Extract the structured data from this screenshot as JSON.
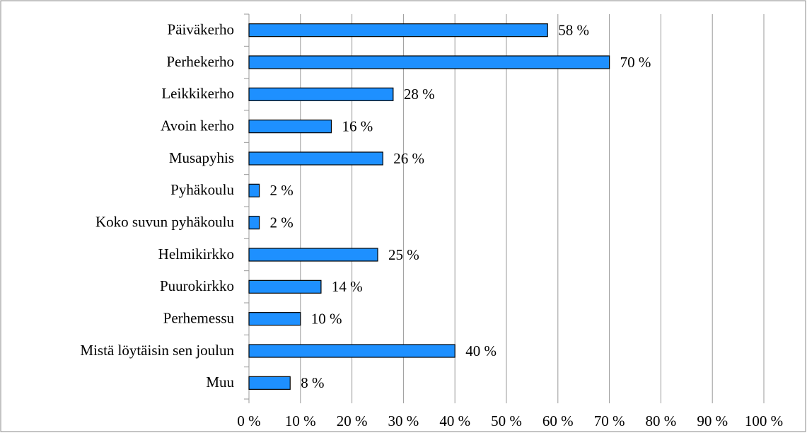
{
  "chart_data": {
    "type": "barh",
    "categories": [
      "Päiväkerho",
      "Perhekerho",
      "Leikkikerho",
      "Avoin kerho",
      "Musapyhis",
      "Pyhäkoulu",
      "Koko suvun pyhäkoulu",
      "Helmikirkko",
      "Puurokirkko",
      "Perhemessu",
      "Mistä löytäisin sen joulun",
      "Muu"
    ],
    "values": [
      58,
      70,
      28,
      16,
      26,
      2,
      2,
      25,
      14,
      10,
      40,
      8
    ],
    "value_labels": [
      "58 %",
      "70 %",
      "28 %",
      "16 %",
      "26 %",
      "2 %",
      "2 %",
      "25 %",
      "14 %",
      "10 %",
      "40 %",
      "8 %"
    ],
    "color": "#1e90ff",
    "xlim": [
      0,
      100
    ],
    "xticks": [
      {
        "value": 0,
        "label": "0 %"
      },
      {
        "value": 10,
        "label": "10 %"
      },
      {
        "value": 20,
        "label": "20 %"
      },
      {
        "value": 30,
        "label": "30 %"
      },
      {
        "value": 40,
        "label": "40 %"
      },
      {
        "value": 50,
        "label": "50 %"
      },
      {
        "value": 60,
        "label": "60 %"
      },
      {
        "value": 70,
        "label": "70 %"
      },
      {
        "value": 80,
        "label": "80 %"
      },
      {
        "value": 90,
        "label": "90 %"
      },
      {
        "value": 100,
        "label": "100 %"
      }
    ],
    "grid": true
  }
}
